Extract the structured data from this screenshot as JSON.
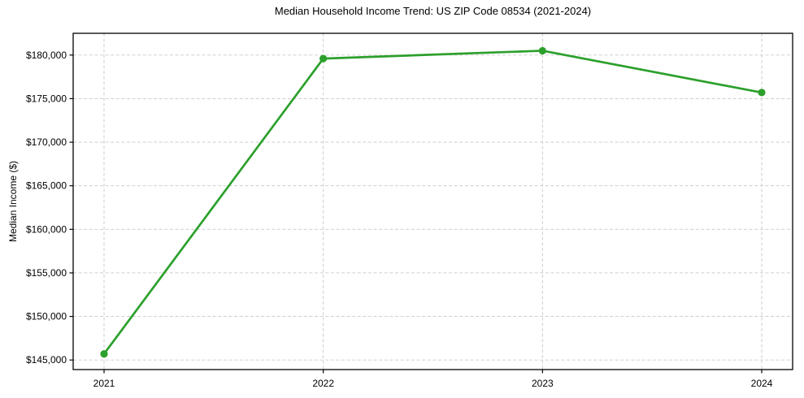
{
  "chart_data": {
    "type": "line",
    "title": "Median Household Income Trend: US ZIP Code 08534 (2021-2024)",
    "xlabel": "",
    "ylabel": "Median Income ($)",
    "categories": [
      "2021",
      "2022",
      "2023",
      "2024"
    ],
    "values": [
      145700,
      179600,
      180500,
      175700
    ],
    "yticks": [
      {
        "value": 145000,
        "label": "$145,000"
      },
      {
        "value": 150000,
        "label": "$150,000"
      },
      {
        "value": 155000,
        "label": "$155,000"
      },
      {
        "value": 160000,
        "label": "$160,000"
      },
      {
        "value": 165000,
        "label": "$165,000"
      },
      {
        "value": 170000,
        "label": "$170,000"
      },
      {
        "value": 175000,
        "label": "$175,000"
      },
      {
        "value": 180000,
        "label": "$180,000"
      }
    ],
    "ylim": [
      143900,
      182500
    ],
    "grid": true,
    "grid_style": "dashed",
    "legend_position": "none",
    "marker": "circle",
    "colors": {
      "line": "#2ca02c",
      "marker": "#2ca02c",
      "grid": "#c9c9c9",
      "axis": "#000000",
      "text": "#000000",
      "background": "#ffffff"
    }
  }
}
